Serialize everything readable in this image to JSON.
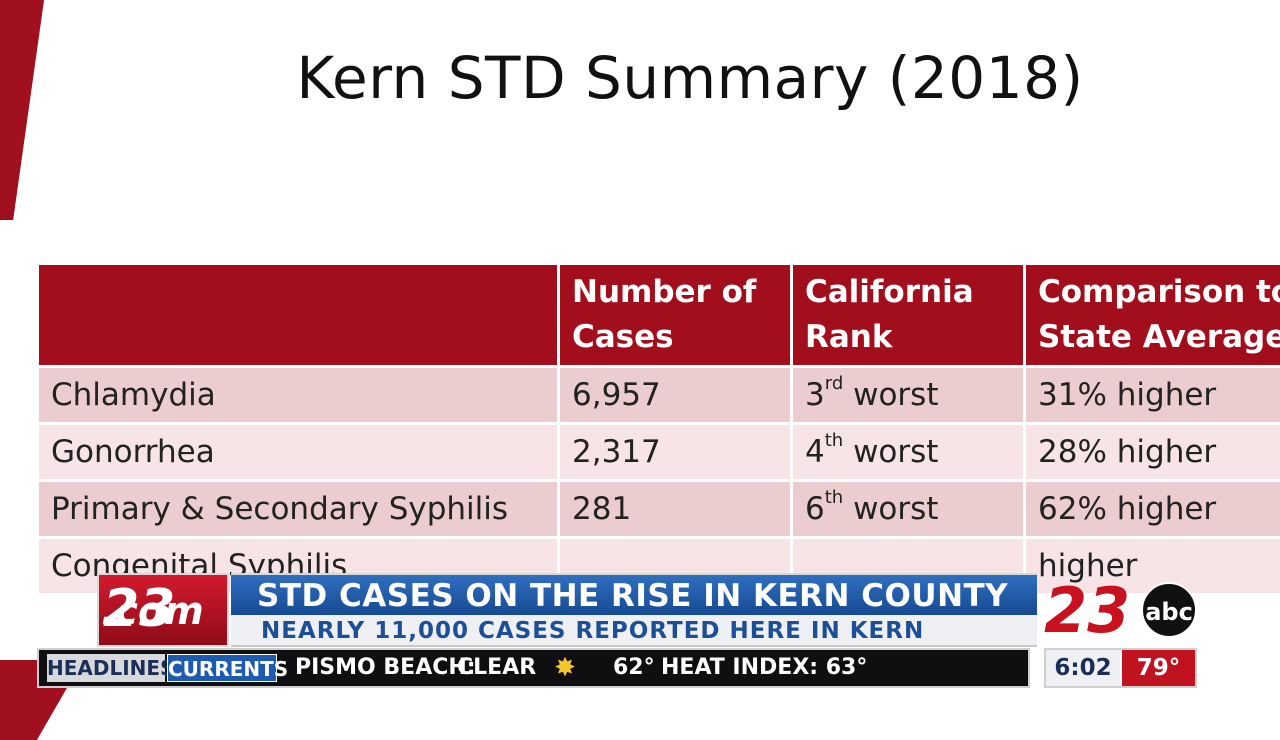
{
  "slide": {
    "title": "Kern STD Summary (2018)",
    "headers": [
      "",
      "Number of Cases",
      "California Rank",
      "Comparison to State Average"
    ],
    "rows": [
      {
        "disease": "Chlamydia",
        "cases": "6,957",
        "rank_num": "3",
        "rank_sup": "rd",
        "rank_word": "worst",
        "comparison": "31% higher"
      },
      {
        "disease": "Gonorrhea",
        "cases": "2,317",
        "rank_num": "4",
        "rank_sup": "th",
        "rank_word": "worst",
        "comparison": "28% higher"
      },
      {
        "disease": "Primary & Secondary Syphilis",
        "cases": "281",
        "rank_num": "6",
        "rank_sup": "th",
        "rank_word": "worst",
        "comparison": "62% higher"
      },
      {
        "disease": "Congenital Syphilis",
        "cases": "",
        "rank_num": "",
        "rank_sup": "",
        "rank_word": "",
        "comparison": "higher"
      }
    ]
  },
  "lower_third": {
    "logo_text": "23",
    "logo_suffix": ".com",
    "headline": "STD CASES ON THE RISE IN KERN COUNTY",
    "subheadline": "NEARLY 11,000 CASES REPORTED HERE IN KERN",
    "station_number": "23",
    "network": "abc"
  },
  "ticker": {
    "tab_headlines": "HEADLINES",
    "tab_currents": "CURRENTS",
    "location": "PISMO BEACH:",
    "condition": "CLEAR",
    "temp": "62°",
    "heat_index": "HEAT INDEX: 63°"
  },
  "clock": {
    "time": "6:02",
    "temp": "79°"
  },
  "colors": {
    "table_header": "#a30e1d",
    "row_odd": "#ebcdd0",
    "row_even": "#f6e4e6",
    "headline_blue": "#2f6fbf",
    "brand_red": "#c8121f"
  },
  "icons": {
    "weather": "sun-icon"
  }
}
